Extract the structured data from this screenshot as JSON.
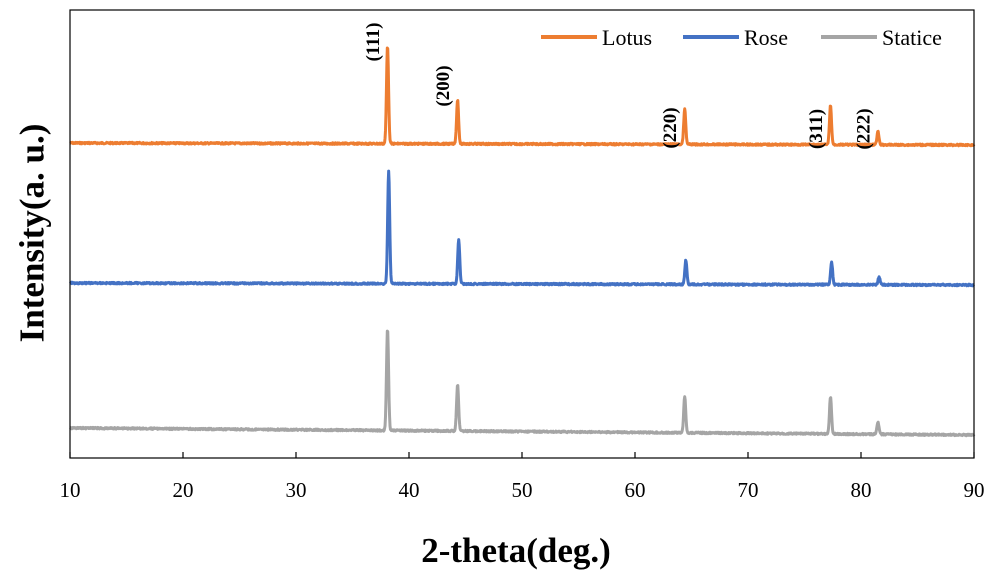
{
  "chart_data": {
    "type": "line",
    "xlabel": "2-theta(deg.)",
    "ylabel": "Intensity(a. u.)",
    "xlim": [
      10,
      90
    ],
    "xticks": [
      10,
      20,
      30,
      40,
      50,
      60,
      70,
      80,
      90
    ],
    "grid": false,
    "y_ticks_shown": false,
    "legend": {
      "position": "top-right",
      "entries": [
        "Lotus",
        "Rose",
        "Statice"
      ]
    },
    "peak_labels": [
      {
        "label": "(111)",
        "x": 38.1
      },
      {
        "label": "(200)",
        "x": 44.3
      },
      {
        "label": "(220)",
        "x": 64.4
      },
      {
        "label": "(311)",
        "x": 77.3
      },
      {
        "label": "(222)",
        "x": 81.5
      }
    ],
    "series": [
      {
        "name": "Lotus",
        "color": "#ED7D31",
        "peaks": [
          {
            "x": 38.1,
            "height": 98
          },
          {
            "x": 44.3,
            "height": 44
          },
          {
            "x": 64.4,
            "height": 35
          },
          {
            "x": 77.3,
            "height": 39
          },
          {
            "x": 81.5,
            "height": 13
          }
        ]
      },
      {
        "name": "Rose",
        "color": "#4472C4",
        "peaks": [
          {
            "x": 38.2,
            "height": 112
          },
          {
            "x": 44.4,
            "height": 44
          },
          {
            "x": 64.5,
            "height": 24
          },
          {
            "x": 77.4,
            "height": 22
          },
          {
            "x": 81.6,
            "height": 8
          }
        ]
      },
      {
        "name": "Statice",
        "color": "#A5A5A5",
        "peaks": [
          {
            "x": 38.1,
            "height": 102
          },
          {
            "x": 44.3,
            "height": 46
          },
          {
            "x": 64.4,
            "height": 36
          },
          {
            "x": 77.3,
            "height": 37
          },
          {
            "x": 81.5,
            "height": 12
          }
        ]
      }
    ]
  }
}
